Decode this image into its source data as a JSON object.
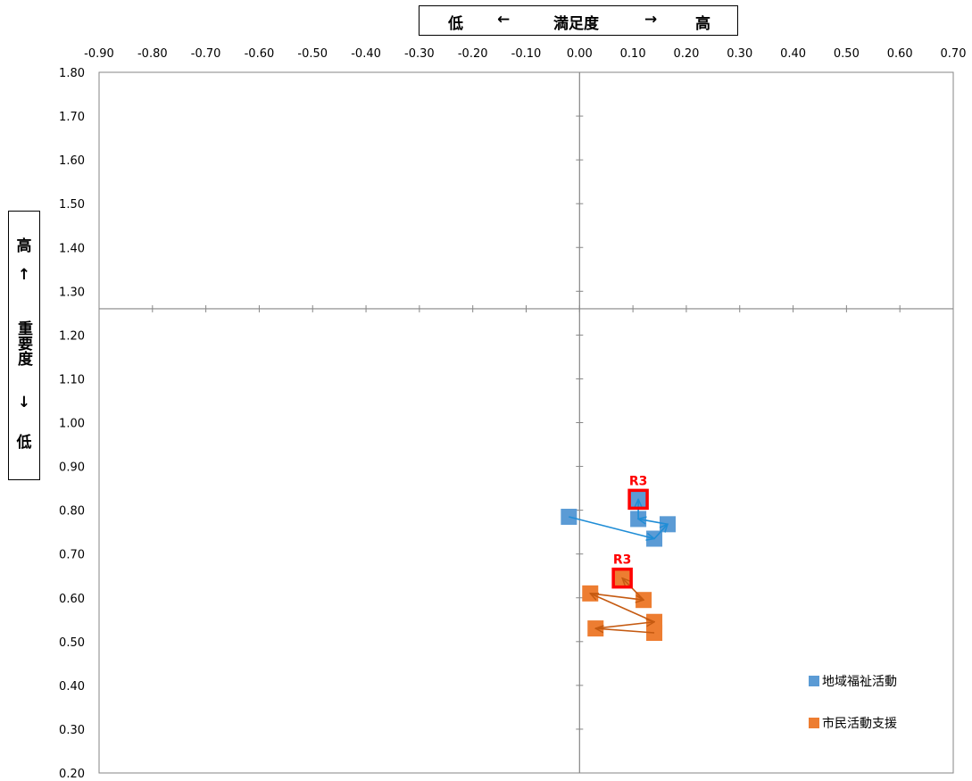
{
  "x_axis_box": {
    "low": "低",
    "left_arrow": "←",
    "title": "満足度",
    "right_arrow": "→",
    "high": "高"
  },
  "y_axis_box": {
    "high": "高",
    "up_arrow": "↑",
    "title": "重要度",
    "down_arrow": "↓",
    "low": "低"
  },
  "legend": [
    {
      "label": "地域福祉活動",
      "color": "#5B9BD5"
    },
    {
      "label": "市民活動支援",
      "color": "#ED7D31"
    }
  ],
  "chart_data": {
    "type": "scatter",
    "xlim": [
      -0.9,
      0.7
    ],
    "ylim": [
      0.2,
      1.8
    ],
    "x_ticks": [
      "-0.90",
      "-0.80",
      "-0.70",
      "-0.60",
      "-0.50",
      "-0.40",
      "-0.30",
      "-0.20",
      "-0.10",
      "0.00",
      "0.10",
      "0.20",
      "0.30",
      "0.40",
      "0.50",
      "0.60",
      "0.70"
    ],
    "y_ticks": [
      "1.80",
      "1.70",
      "1.60",
      "1.50",
      "1.40",
      "1.30",
      "1.20",
      "1.10",
      "1.00",
      "0.90",
      "0.80",
      "0.70",
      "0.60",
      "0.50",
      "0.40",
      "0.30",
      "0.20"
    ],
    "crosshair": {
      "x": 0.0,
      "y": 1.26
    },
    "grid": false,
    "legend_position": "bottom-right",
    "series": [
      {
        "name": "地域福祉活動",
        "color": "#5B9BD5",
        "arrow_color": "#1F8DD6",
        "points": [
          {
            "x": -0.02,
            "y": 0.785
          },
          {
            "x": 0.14,
            "y": 0.735
          },
          {
            "x": 0.165,
            "y": 0.768
          },
          {
            "x": 0.11,
            "y": 0.78
          },
          {
            "x": 0.11,
            "y": 0.825,
            "label": "R3"
          }
        ]
      },
      {
        "name": "市民活動支援",
        "color": "#ED7D31",
        "arrow_color": "#C55A11",
        "points": [
          {
            "x": 0.14,
            "y": 0.52
          },
          {
            "x": 0.03,
            "y": 0.53
          },
          {
            "x": 0.14,
            "y": 0.545
          },
          {
            "x": 0.02,
            "y": 0.61
          },
          {
            "x": 0.12,
            "y": 0.595
          },
          {
            "x": 0.08,
            "y": 0.645,
            "label": "R3"
          }
        ]
      }
    ],
    "highlight_color": "#FF0000"
  }
}
